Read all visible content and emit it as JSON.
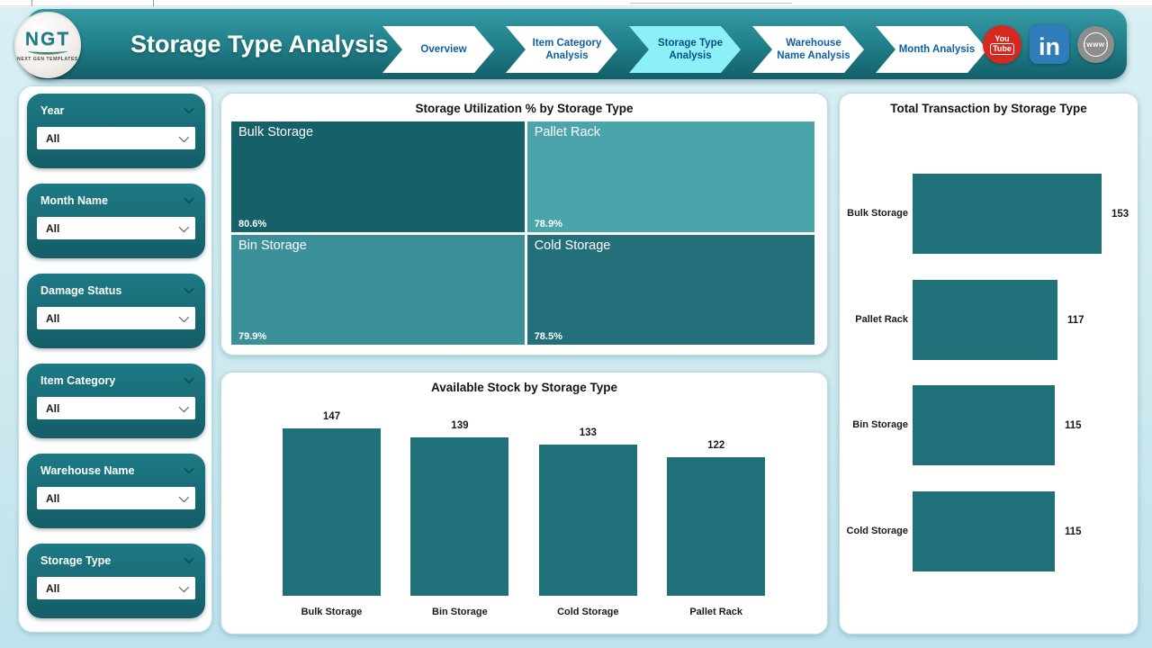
{
  "header": {
    "title": "Storage Type Analysis",
    "logo": {
      "text": "NGT",
      "subtext": "NEXT GEN TEMPLATES"
    },
    "nav": [
      {
        "label": "Overview",
        "active": false
      },
      {
        "label": "Item Category Analysis",
        "active": false
      },
      {
        "label": "Storage Type Analysis",
        "active": true
      },
      {
        "label": "Warehouse Name Analysis",
        "active": false
      },
      {
        "label": "Month Analysis",
        "active": false
      }
    ],
    "social": {
      "youtube_line1": "You",
      "youtube_line2": "Tube",
      "linkedin": "in",
      "website": "www"
    }
  },
  "filters": [
    {
      "label": "Year",
      "value": "All"
    },
    {
      "label": "Month Name",
      "value": "All"
    },
    {
      "label": "Damage Status",
      "value": "All"
    },
    {
      "label": "Item Category",
      "value": "All"
    },
    {
      "label": "Warehouse Name",
      "value": "All"
    },
    {
      "label": "Storage Type",
      "value": "All"
    }
  ],
  "theme": {
    "header_top": "#3599a3",
    "header_bottom": "#135f69",
    "card_top": "#1d7a85",
    "card_bottom": "#135d67",
    "active_tab": "#8bf0f8",
    "nav_text": "#0d5fa8",
    "bar_color": "#20707a",
    "panel_border": "#b9dde7",
    "title_text": "#141414"
  },
  "chart_data": [
    {
      "type": "heatmap",
      "subtype": "treemap",
      "title": "Storage Utilization % by Storage Type",
      "tiles": [
        {
          "label": "Bulk Storage",
          "value": 80.6,
          "value_label": "80.6%",
          "color": "#156069"
        },
        {
          "label": "Pallet Rack",
          "value": 78.9,
          "value_label": "78.9%",
          "color": "#4ba3ac"
        },
        {
          "label": "Bin Storage",
          "value": 79.9,
          "value_label": "79.9%",
          "color": "#3a8f98"
        },
        {
          "label": "Cold Storage",
          "value": 78.5,
          "value_label": "78.5%",
          "color": "#23707a"
        }
      ],
      "legend": "none",
      "data_labels": "on"
    },
    {
      "type": "bar",
      "orientation": "vertical",
      "title": "Available Stock by Storage Type",
      "categories": [
        "Bulk Storage",
        "Bin Storage",
        "Cold Storage",
        "Pallet Rack"
      ],
      "values": [
        147,
        139,
        133,
        122
      ],
      "ylim": [
        0,
        147
      ],
      "axis_ticks": "hidden",
      "data_labels": "on",
      "grid": false
    },
    {
      "type": "bar",
      "orientation": "horizontal",
      "title": "Total Transaction by Storage Type",
      "categories": [
        "Bulk Storage",
        "Pallet Rack",
        "Bin Storage",
        "Cold Storage"
      ],
      "values": [
        153,
        117,
        115,
        115
      ],
      "xlim": [
        0,
        153
      ],
      "axis_ticks": "hidden",
      "data_labels": "on",
      "grid": false
    }
  ]
}
